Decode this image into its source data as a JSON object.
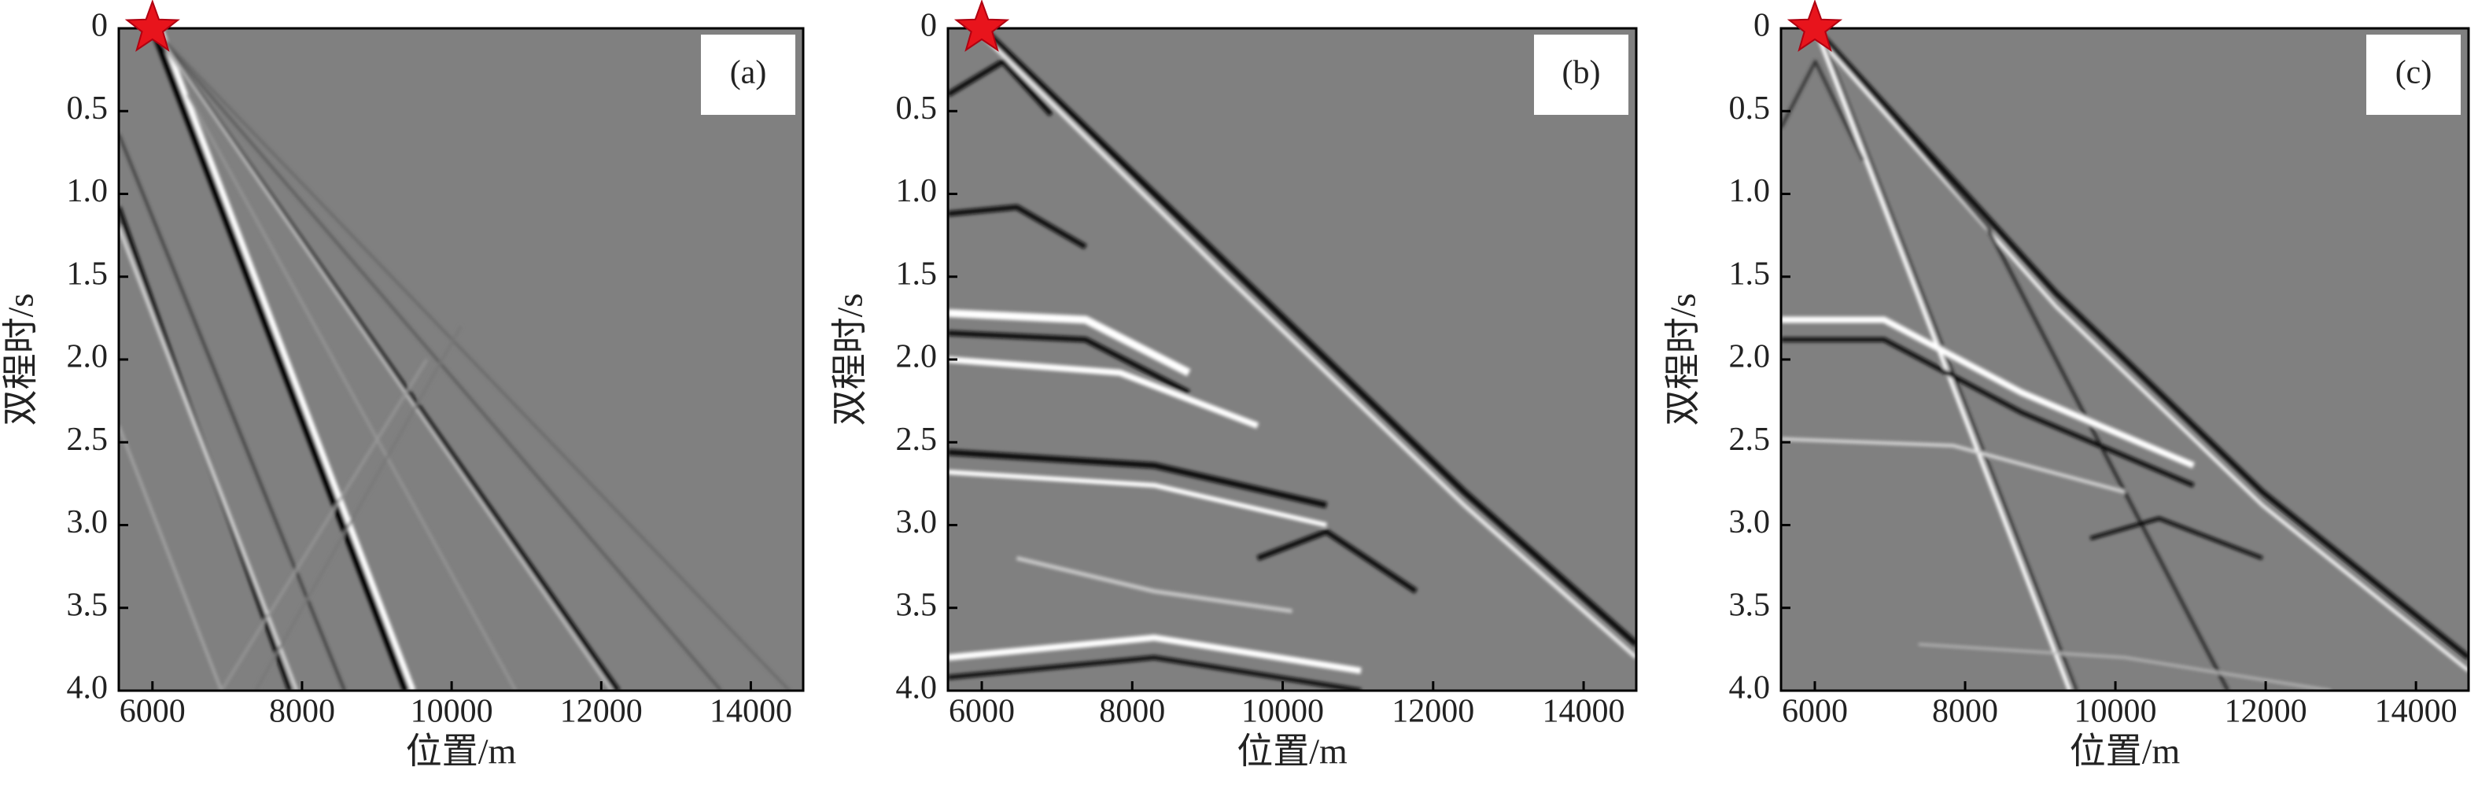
{
  "chart_data": [
    {
      "type": "seismic",
      "panel_label": "(a)",
      "xlabel": "位置/m",
      "ylabel": "双程时/s",
      "xlim": [
        5550,
        14700
      ],
      "xticks": [
        6000,
        8000,
        10000,
        12000,
        14000
      ],
      "ylim": [
        4,
        0
      ],
      "yticks": [
        0,
        {
          "value": 0.5,
          "label": "0.5"
        },
        {
          "value": 1,
          "label": "1.0"
        },
        {
          "value": 1.5,
          "label": "1.5"
        },
        {
          "value": 2,
          "label": "2.0"
        },
        {
          "value": 2.5,
          "label": "2.5"
        },
        {
          "value": 3,
          "label": "3.0"
        },
        {
          "value": 3.5,
          "label": "3.5"
        },
        {
          "value": 4,
          "label": "4.0"
        }
      ],
      "source_x": 6000,
      "source_t": 0,
      "source_color": "#e8141c",
      "background": "#808080"
    },
    {
      "type": "seismic",
      "panel_label": "(b)",
      "xlabel": "位置/m",
      "ylabel": "双程时/s",
      "xlim": [
        5550,
        14700
      ],
      "xticks": [
        6000,
        8000,
        10000,
        12000,
        14000
      ],
      "ylim": [
        4,
        0
      ],
      "yticks": [
        0,
        {
          "value": 0.5,
          "label": "0.5"
        },
        {
          "value": 1,
          "label": "1.0"
        },
        {
          "value": 1.5,
          "label": "1.5"
        },
        {
          "value": 2,
          "label": "2.0"
        },
        {
          "value": 2.5,
          "label": "2.5"
        },
        {
          "value": 3,
          "label": "3.0"
        },
        {
          "value": 3.5,
          "label": "3.5"
        },
        {
          "value": 4,
          "label": "4.0"
        }
      ],
      "source_x": 6000,
      "source_t": 0,
      "source_color": "#e8141c",
      "background": "#808080"
    },
    {
      "type": "seismic",
      "panel_label": "(c)",
      "xlabel": "位置/m",
      "ylabel": "双程时/s",
      "xlim": [
        5550,
        14700
      ],
      "xticks": [
        6000,
        8000,
        10000,
        12000,
        14000
      ],
      "ylim": [
        4,
        0
      ],
      "yticks": [
        0,
        {
          "value": 0.5,
          "label": "0.5"
        },
        {
          "value": 1,
          "label": "1.0"
        },
        {
          "value": 1.5,
          "label": "1.5"
        },
        {
          "value": 2,
          "label": "2.0"
        },
        {
          "value": 2.5,
          "label": "2.5"
        },
        {
          "value": 3,
          "label": "3.0"
        },
        {
          "value": 3.5,
          "label": "3.5"
        },
        {
          "value": 4,
          "label": "4.0"
        }
      ],
      "source_x": 6000,
      "source_t": 0,
      "source_color": "#e8141c",
      "background": "#808080"
    }
  ]
}
